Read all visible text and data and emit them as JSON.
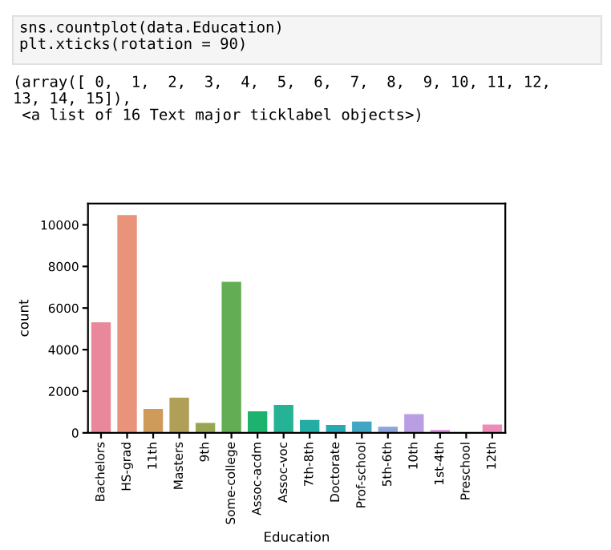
{
  "chart_data": {
    "type": "bar",
    "annotations": [
      "sns.countplot(data.Education)\nplt.xticks(rotation = 90)",
      "(array([ 0,  1,  2,  3,  4,  5,  6,  7,  8,  9, 10, 11, 12,\n13, 14, 15]),\n <a list of 16 Text major ticklabel objects>)"
    ],
    "xlabel": "Education",
    "ylabel": "count",
    "categories": [
      "Bachelors",
      "HS-grad",
      "11th",
      "Masters",
      "9th",
      "Some-college",
      "Assoc-acdm",
      "Assoc-voc",
      "7th-8th",
      "Doctorate",
      "Prof-school",
      "5th-6th",
      "10th",
      "1st-4th",
      "Preschool",
      "12th"
    ],
    "values": [
      5350,
      10500,
      1180,
      1720,
      510,
      7290,
      1070,
      1380,
      650,
      410,
      580,
      330,
      930,
      170,
      50,
      430
    ],
    "colors": [
      "#e9889b",
      "#e8937a",
      "#cf9b5a",
      "#b0a057",
      "#98a552",
      "#63ad55",
      "#1db36f",
      "#26b294",
      "#24ada4",
      "#26a9b4",
      "#3fa6c4",
      "#8ca3dc",
      "#b99ee4",
      "#dc8ee0",
      "#e98dd0",
      "#ed8cb8"
    ],
    "ylim": [
      0,
      11026
    ],
    "yticks": [
      0,
      2000,
      4000,
      6000,
      8000,
      10000
    ],
    "grid": false,
    "legend": false
  }
}
